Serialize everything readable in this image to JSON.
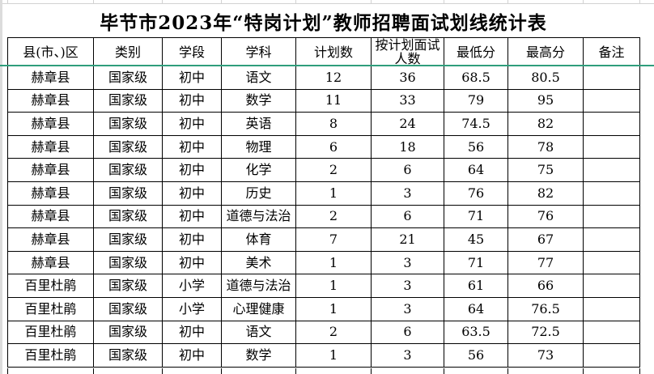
{
  "sheet": {
    "title": "毕节市2023年“特岗计划”教师招聘面试划线统计表",
    "columns": [
      "县(市、)区",
      "类别",
      "学段",
      "学科",
      "计划数",
      "按计划面试\n人数",
      "最低分",
      "最高分",
      "备注"
    ],
    "rows": [
      [
        "赫章县",
        "国家级",
        "初中",
        "语文",
        "12",
        "36",
        "68.5",
        "80.5",
        ""
      ],
      [
        "赫章县",
        "国家级",
        "初中",
        "数学",
        "11",
        "33",
        "79",
        "95",
        ""
      ],
      [
        "赫章县",
        "国家级",
        "初中",
        "英语",
        "8",
        "24",
        "74.5",
        "82",
        ""
      ],
      [
        "赫章县",
        "国家级",
        "初中",
        "物理",
        "6",
        "18",
        "56",
        "78",
        ""
      ],
      [
        "赫章县",
        "国家级",
        "初中",
        "化学",
        "2",
        "6",
        "64",
        "75",
        ""
      ],
      [
        "赫章县",
        "国家级",
        "初中",
        "历史",
        "1",
        "3",
        "76",
        "82",
        ""
      ],
      [
        "赫章县",
        "国家级",
        "初中",
        "道德与法治",
        "2",
        "6",
        "71",
        "76",
        ""
      ],
      [
        "赫章县",
        "国家级",
        "初中",
        "体育",
        "7",
        "21",
        "45",
        "67",
        ""
      ],
      [
        "赫章县",
        "国家级",
        "初中",
        "美术",
        "1",
        "3",
        "71",
        "77",
        ""
      ],
      [
        "百里杜鹃",
        "国家级",
        "小学",
        "道德与法治",
        "1",
        "3",
        "61",
        "66",
        ""
      ],
      [
        "百里杜鹃",
        "国家级",
        "小学",
        "心理健康",
        "1",
        "3",
        "64",
        "76.5",
        ""
      ],
      [
        "百里杜鹃",
        "国家级",
        "初中",
        "语文",
        "2",
        "6",
        "63.5",
        "72.5",
        ""
      ],
      [
        "百里杜鹃",
        "国家级",
        "初中",
        "数学",
        "1",
        "3",
        "56",
        "73",
        ""
      ]
    ]
  },
  "colors": {
    "freeze_line_green": "#2f9e7c",
    "table_border": "#000000",
    "partial_gridline_grey": "#d2d2d2",
    "sheet_edge_grey": "#dcdcdc"
  }
}
